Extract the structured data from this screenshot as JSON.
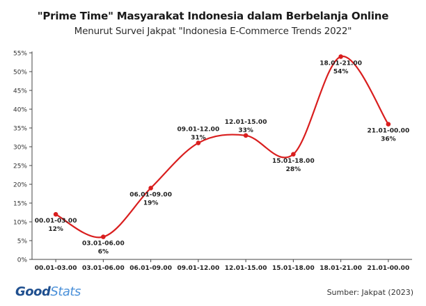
{
  "header": {
    "title": "\"Prime Time\" Masyarakat Indonesia dalam Berbelanja Online",
    "subtitle": "Menurut Survei Jakpat \"Indonesia E-Commerce Trends 2022\""
  },
  "footer": {
    "logo_part1": "Good",
    "logo_part2": "Stats",
    "source": "Sumber: Jakpat (2023)"
  },
  "chart_data": {
    "type": "line",
    "categories": [
      "00.01-03.00",
      "03.01-06.00",
      "06.01-09.00",
      "09.01-12.00",
      "12.01-15.00",
      "15.01-18.00",
      "18.01-21.00",
      "21.01-00.00"
    ],
    "values": [
      12,
      6,
      19,
      31,
      33,
      28,
      54,
      36
    ],
    "data_labels": [
      "12%",
      "6%",
      "19%",
      "31%",
      "33%",
      "28%",
      "54%",
      "36%"
    ],
    "y_ticks": [
      "0%",
      "5%",
      "10%",
      "15%",
      "20%",
      "25%",
      "30%",
      "35%",
      "40%",
      "45%",
      "50%",
      "55%"
    ],
    "ylim": [
      0,
      55
    ],
    "grid": false,
    "line_color": "#d91e1e",
    "marker_color": "#d91e1e",
    "curve": "smooth"
  }
}
